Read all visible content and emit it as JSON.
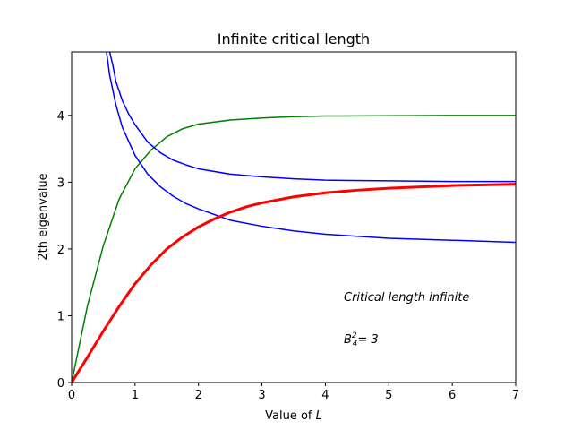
{
  "chart_data": {
    "type": "line",
    "title": "Infinite critical length",
    "xlabel_prefix": "Value of ",
    "xlabel_var": "L",
    "ylabel": "2th eigenvalue",
    "xlim": [
      0,
      7
    ],
    "ylim": [
      0,
      4.95
    ],
    "x_ticks": [
      0,
      1,
      2,
      3,
      4,
      5,
      6,
      7
    ],
    "y_ticks": [
      0,
      1,
      2,
      3,
      4
    ],
    "grid": false,
    "colors": {
      "green": "#008000",
      "blue": "#0000ff",
      "red": "#ff0000"
    },
    "series": [
      {
        "color": "#008000",
        "linewidth": 1.5,
        "x": [
          0,
          0.25,
          0.5,
          0.75,
          1.0,
          1.25,
          1.5,
          1.75,
          2.0,
          2.5,
          3.0,
          3.5,
          4.0,
          5.0,
          6.0,
          7.0
        ],
        "y": [
          0,
          1.15,
          2.05,
          2.75,
          3.2,
          3.48,
          3.68,
          3.8,
          3.87,
          3.93,
          3.96,
          3.98,
          3.99,
          3.995,
          4.0,
          4.0
        ]
      },
      {
        "color": "#0000ff",
        "linewidth": 1.5,
        "x": [
          0.55,
          0.6,
          0.7,
          0.8,
          1.0,
          1.2,
          1.4,
          1.6,
          1.8,
          2.0,
          2.5,
          3.0,
          3.5,
          4.0,
          5.0,
          6.0,
          7.0
        ],
        "y": [
          4.95,
          4.6,
          4.15,
          3.82,
          3.4,
          3.12,
          2.93,
          2.79,
          2.68,
          2.6,
          2.43,
          2.34,
          2.27,
          2.22,
          2.16,
          2.13,
          2.1
        ]
      },
      {
        "color": "#0000ff",
        "linewidth": 1.5,
        "x": [
          0.6,
          0.65,
          0.7,
          0.8,
          0.9,
          1.0,
          1.2,
          1.4,
          1.6,
          1.8,
          2.0,
          2.5,
          3.0,
          3.5,
          4.0,
          5.0,
          6.0,
          7.0
        ],
        "y": [
          4.95,
          4.75,
          4.5,
          4.22,
          4.02,
          3.86,
          3.6,
          3.44,
          3.33,
          3.26,
          3.2,
          3.12,
          3.08,
          3.05,
          3.03,
          3.02,
          3.01,
          3.01
        ]
      },
      {
        "color": "#ff0000",
        "linewidth": 3,
        "x": [
          0,
          0.25,
          0.5,
          0.75,
          1.0,
          1.25,
          1.5,
          1.75,
          2.0,
          2.25,
          2.5,
          2.75,
          3.0,
          3.5,
          4.0,
          4.5,
          5.0,
          5.5,
          6.0,
          6.5,
          7.0
        ],
        "y": [
          0,
          0.38,
          0.77,
          1.14,
          1.48,
          1.76,
          2.0,
          2.18,
          2.33,
          2.45,
          2.55,
          2.63,
          2.69,
          2.78,
          2.84,
          2.88,
          2.91,
          2.93,
          2.95,
          2.96,
          2.97
        ]
      }
    ],
    "annotations": {
      "line1": "Critical length infinite",
      "line2_prefix": "B",
      "line2_sup": "2",
      "line2_sub": "4",
      "line2_suffix": "= 3"
    }
  }
}
